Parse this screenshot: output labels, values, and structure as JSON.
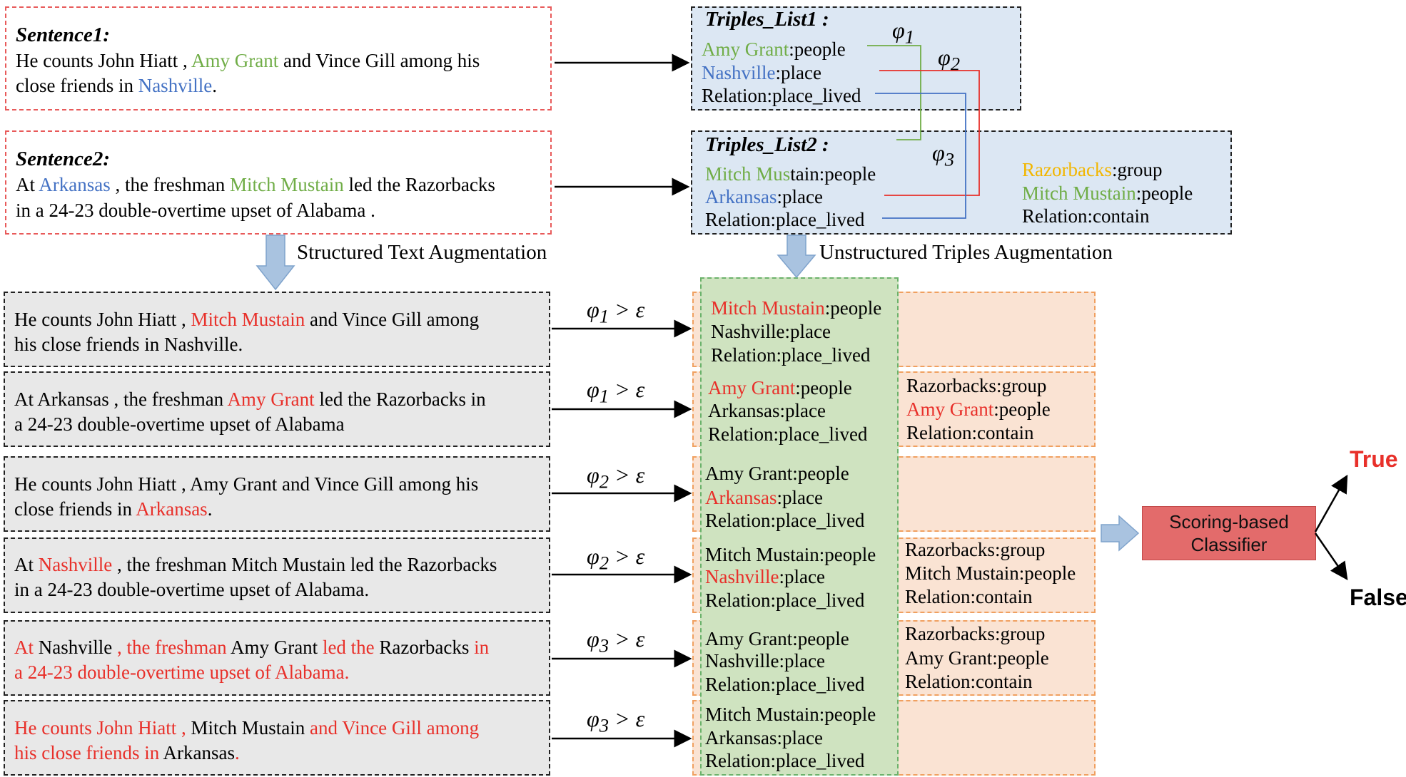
{
  "sentence1": {
    "title": "Sentence1:",
    "line1": [
      "He counts John Hiatt , ",
      "Amy Grant",
      " and Vince Gill among his"
    ],
    "line2": [
      "close friends in ",
      "Nashville",
      "."
    ]
  },
  "sentence2": {
    "title": "Sentence2:",
    "line1": [
      "At ",
      "Arkansas",
      " , the freshman ",
      "Mitch Mustain",
      " led the Razorbacks"
    ],
    "line2": "in a 24-23 double-overtime upset of Alabama ."
  },
  "triples1": {
    "title": "Triples_List1 :",
    "r1": [
      "Amy Grant",
      ":people"
    ],
    "r2": [
      "Nashville",
      ":place"
    ],
    "r3": "Relation:place_lived"
  },
  "triples2": {
    "title": "Triples_List2 :",
    "r1": [
      "Mitch Mus",
      "tain:people"
    ],
    "r2": [
      "Arkansas",
      ":place"
    ],
    "r3": "Relation:place_lived",
    "s1": [
      "Razorbacks",
      ":group"
    ],
    "s2": [
      "Mitch Mustain",
      ":people"
    ],
    "s3": "Relation:contain"
  },
  "phi_labels": {
    "p1": "φ1",
    "p2": "φ2",
    "p3": "φ3"
  },
  "labels": {
    "structured": "Structured Text Augmentation",
    "unstructured": "Unstructured Triples Augmentation"
  },
  "rows": [
    {
      "text1": [
        "He counts John Hiatt , ",
        "Mitch Mustain",
        " and Vince Gill among"
      ],
      "text2": "his close friends in Nashville.",
      "cond": "φ1 > ε",
      "g1": [
        "Mitch Mustain",
        ":people"
      ],
      "g2": "Nashville:place",
      "g3": "Relation:place_lived"
    },
    {
      "text1": [
        "At Arkansas , the freshman ",
        "Amy Grant",
        "  led the Razorbacks in"
      ],
      "text2": "a 24-23 double-overtime upset of Alabama",
      "cond": "φ1 > ε",
      "g1": [
        "Amy Grant",
        ":people"
      ],
      "g2": "Arkansas:place",
      "g3": "Relation:place_lived",
      "o1": "Razorbacks:group",
      "o2": [
        "Amy Grant",
        ":people"
      ],
      "o3": "Relation:contain"
    },
    {
      "text1": "He counts John Hiatt , Amy Grant and Vince Gill among his",
      "text2": [
        "close friends in ",
        "Arkansas",
        "."
      ],
      "cond": "φ2 > ε",
      "g1": "Amy Grant:people",
      "g2": [
        "Arkansas",
        ":place"
      ],
      "g3": "Relation:place_lived"
    },
    {
      "text1": [
        "At ",
        "Nashville",
        " , the freshman Mitch Mustain led the Razorbacks"
      ],
      "text2": "in a 24-23 double-overtime upset of Alabama.",
      "cond": "φ2 > ε",
      "g1": "Mitch Mustain:people",
      "g2": [
        "Nashville",
        ":place"
      ],
      "g3": "Relation:place_lived",
      "o1": "Razorbacks:group",
      "o2": "Mitch Mustain:people",
      "o3": "Relation:contain"
    },
    {
      "text1": [
        "At",
        " Nashville ",
        ", the freshman",
        " Amy Grant ",
        "led the",
        " Razorbacks ",
        "in"
      ],
      "text2": "a 24-23 double-overtime upset of Alabama.",
      "cond": "φ3 > ε",
      "g1": "Amy Grant:people",
      "g2": "Nashville:place",
      "g3": "Relation:place_lived",
      "o1": "Razorbacks:group",
      "o2": "Amy Grant:people",
      "o3": "Relation:contain"
    },
    {
      "text1": [
        "He counts John Hiatt ,",
        " Mitch Mustain ",
        "and Vince Gill among"
      ],
      "text2": [
        "his close friends in",
        " Arkansas",
        "."
      ],
      "cond": "φ3 > ε",
      "g1": "Mitch Mustain:people",
      "g2": "Arkansas:place",
      "g3": "Relation:place_lived"
    }
  ],
  "classifier": {
    "line1": "Scoring-based",
    "line2": "Classifier"
  },
  "outputs": {
    "true": "True",
    "false": "False"
  },
  "colors": {
    "green": "#70ad47",
    "blue": "#4472c4",
    "red": "#e8302a",
    "yellow": "#f2b600",
    "classifier": "#e36b6b"
  }
}
